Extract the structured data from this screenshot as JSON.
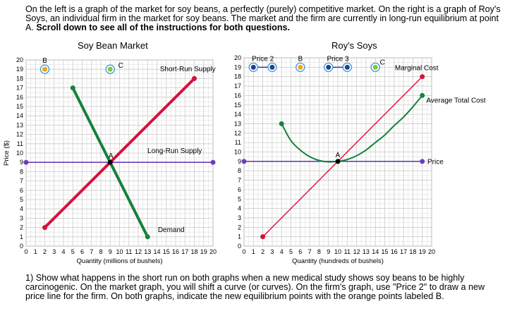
{
  "intro": {
    "text": "On the left is a graph of the market for soy beans, a perfectly (purely) competitive market. On the right is a graph of Roy's Soys, an individual firm in the market for soy beans. The market and the firm are currently in long-run equilibrium at point A. ",
    "bold": "Scroll down to see all of the instructions for both questions."
  },
  "question1": "1) Show what happens in the short run on both graphs when a new medical study shows soy beans to be highly carcinogenic. On the market graph, you will shift a curve (or curves). On the firm's graph, use \"Price 2\" to draw a new price line for the firm. On both graphs, indicate the new equilibrium points with the orange points labeled B.",
  "colors": {
    "supply": "#d6103c",
    "demand": "#17803d",
    "price": "#6b3fb8",
    "handle_orange": "#f5a020",
    "handle_green": "#7cc63f",
    "handle_ring": "#3a9ad9",
    "price_handle": "#1f3f8c"
  },
  "chart_data": [
    {
      "type": "line",
      "title": "Soy Bean Market",
      "xlabel": "Quantity (millions of bushels)",
      "ylabel": "Price ($)",
      "xlim": [
        0,
        20
      ],
      "ylim": [
        0,
        20
      ],
      "x_ticks": [
        0,
        1,
        2,
        3,
        4,
        5,
        6,
        7,
        8,
        9,
        10,
        11,
        12,
        13,
        14,
        15,
        16,
        17,
        18,
        19,
        20
      ],
      "y_ticks": [
        0,
        1,
        2,
        3,
        4,
        5,
        6,
        7,
        8,
        9,
        10,
        11,
        12,
        13,
        14,
        15,
        16,
        17,
        18,
        19,
        20
      ],
      "grid": true,
      "series": [
        {
          "name": "Short-Run Supply",
          "points": [
            [
              2,
              2
            ],
            [
              18,
              18
            ]
          ]
        },
        {
          "name": "Demand",
          "points": [
            [
              5,
              17
            ],
            [
              13,
              1
            ]
          ]
        },
        {
          "name": "Long-Run Supply",
          "points": [
            [
              0,
              9
            ],
            [
              20,
              9
            ]
          ]
        }
      ],
      "points": [
        {
          "label": "A",
          "x": 9,
          "y": 9
        },
        {
          "label": "B",
          "x": 2,
          "y": 19
        },
        {
          "label": "C",
          "x": 9,
          "y": 19
        }
      ]
    },
    {
      "type": "line",
      "title": "Roy's Soys",
      "xlabel": "Quantity (hundreds of bushels)",
      "ylabel": "",
      "xlim": [
        0,
        20
      ],
      "ylim": [
        0,
        20
      ],
      "x_ticks": [
        0,
        1,
        2,
        3,
        4,
        5,
        6,
        7,
        8,
        9,
        10,
        11,
        12,
        13,
        14,
        15,
        16,
        17,
        18,
        19,
        20
      ],
      "y_ticks": [
        0,
        1,
        2,
        3,
        4,
        5,
        6,
        7,
        8,
        9,
        10,
        11,
        12,
        13,
        14,
        15,
        16,
        17,
        18,
        19,
        20
      ],
      "grid": true,
      "series": [
        {
          "name": "Marginal Cost",
          "points": [
            [
              2,
              1
            ],
            [
              19,
              18
            ]
          ]
        },
        {
          "name": "Average Total Cost",
          "points": [
            [
              4,
              13
            ],
            [
              5,
              11.2
            ],
            [
              6,
              10.2
            ],
            [
              7,
              9.5
            ],
            [
              8,
              9.1
            ],
            [
              9,
              8.95
            ],
            [
              10,
              9
            ],
            [
              11,
              9.2
            ],
            [
              12,
              9.6
            ],
            [
              13,
              10.2
            ],
            [
              14,
              11
            ],
            [
              15,
              11.8
            ],
            [
              16,
              12.8
            ],
            [
              17,
              13.7
            ],
            [
              18,
              14.8
            ],
            [
              19,
              16
            ]
          ]
        },
        {
          "name": "Price",
          "points": [
            [
              0,
              9
            ],
            [
              19,
              9
            ]
          ]
        }
      ],
      "points": [
        {
          "label": "A",
          "x": 10,
          "y": 9
        },
        {
          "label": "Price 2",
          "x1": 1,
          "x2": 3,
          "y": 19
        },
        {
          "label": "B",
          "x": 6,
          "y": 19
        },
        {
          "label": "Price 3",
          "x1": 9,
          "x2": 11,
          "y": 19
        },
        {
          "label": "C",
          "x": 14,
          "y": 19
        }
      ]
    }
  ]
}
